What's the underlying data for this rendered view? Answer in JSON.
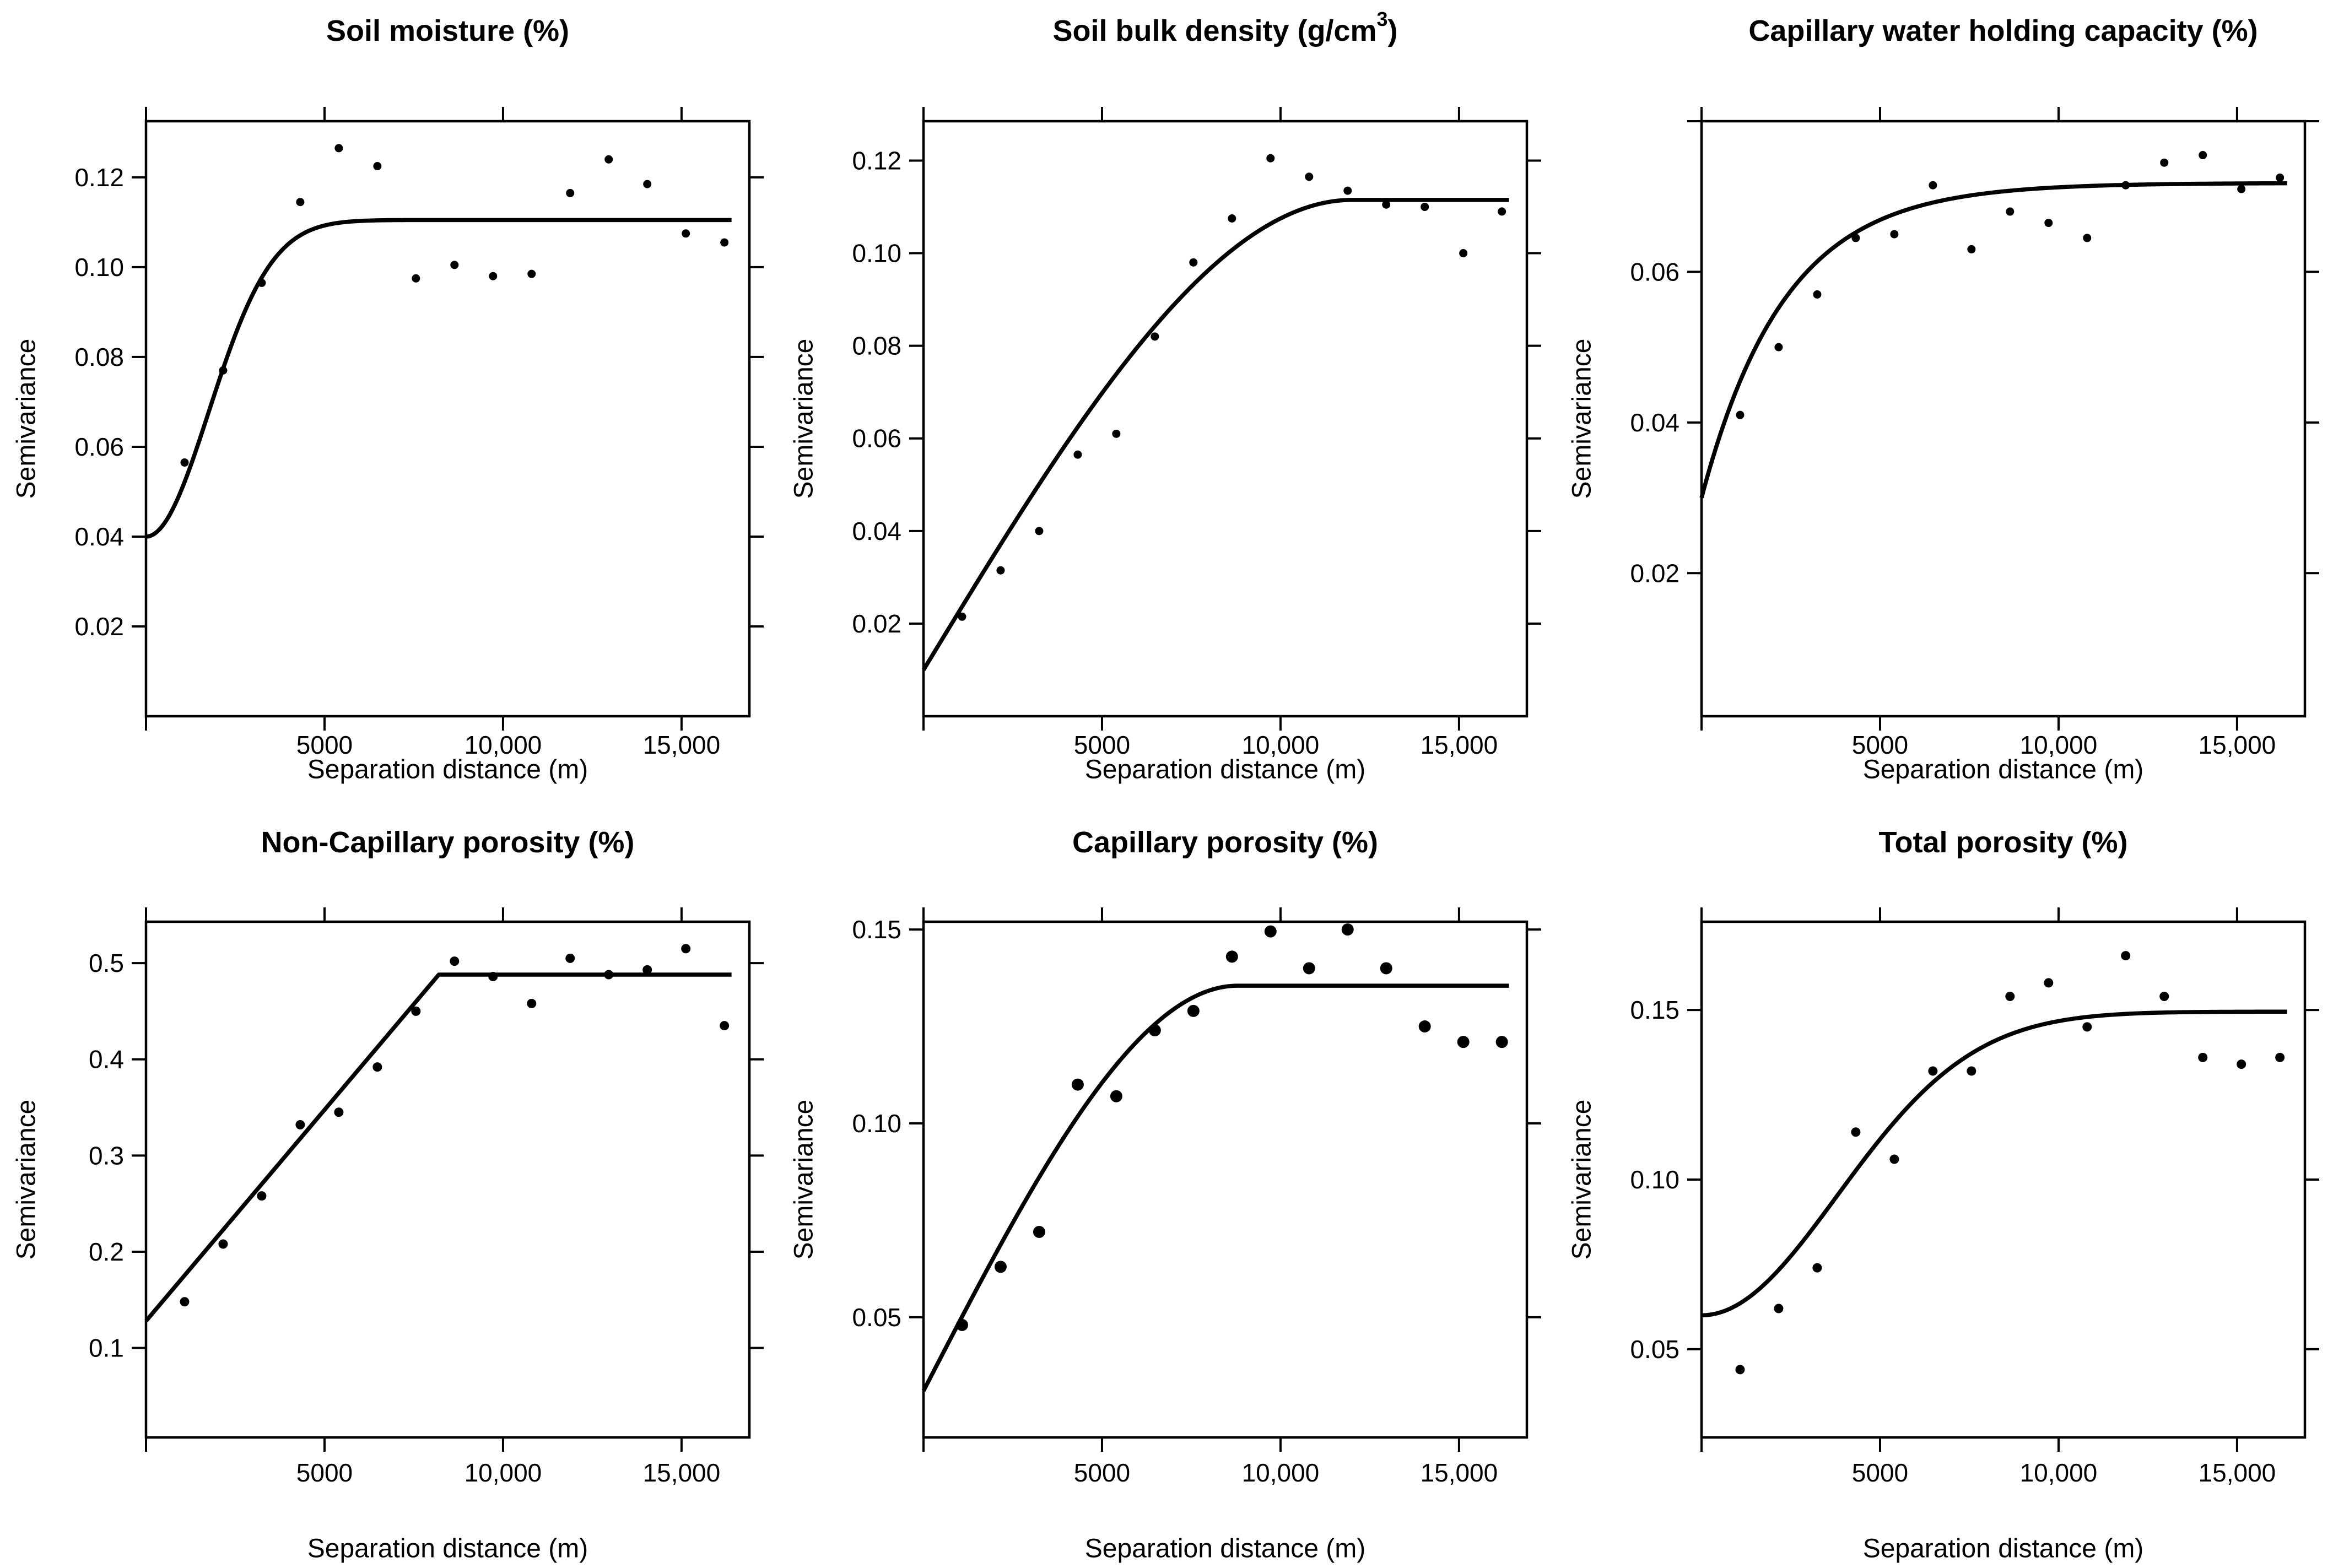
{
  "page": {
    "background": "#ffffff",
    "ink_color": "#000000"
  },
  "chart_data": [
    {
      "id": "soil-moisture",
      "type": "scatter",
      "title_parts": [
        {
          "text": "Soil moisture (%)"
        }
      ],
      "xlabel": "Separation distance (m)",
      "ylabel": "Semivariance",
      "xlim": [
        0,
        16900
      ],
      "ylim": [
        0,
        0.1325
      ],
      "grid": "off",
      "x_ticks": [
        {
          "value": 0,
          "label": ""
        },
        {
          "value": 5000,
          "label": "5000"
        },
        {
          "value": 10000,
          "label": "10,000"
        },
        {
          "value": 15000,
          "label": "15,000"
        }
      ],
      "y_ticks": [
        {
          "value": 0.02,
          "label": "0.02"
        },
        {
          "value": 0.04,
          "label": "0.04"
        },
        {
          "value": 0.06,
          "label": "0.06"
        },
        {
          "value": 0.08,
          "label": "0.08"
        },
        {
          "value": 0.1,
          "label": "0.10"
        },
        {
          "value": 0.12,
          "label": "0.12"
        }
      ],
      "points": [
        [
          1080,
          0.0565
        ],
        [
          2160,
          0.077
        ],
        [
          3240,
          0.0965
        ],
        [
          4320,
          0.1145
        ],
        [
          5400,
          0.1265
        ],
        [
          6480,
          0.1225
        ],
        [
          7560,
          0.0975
        ],
        [
          8640,
          0.1005
        ],
        [
          9720,
          0.098
        ],
        [
          10800,
          0.0985
        ],
        [
          11880,
          0.1165
        ],
        [
          12960,
          0.124
        ],
        [
          14040,
          0.1185
        ],
        [
          15120,
          0.1075
        ],
        [
          16200,
          0.1055
        ]
      ],
      "fit_curve": {
        "model": "gaussian",
        "nugget": 0.04,
        "sill": 0.1105,
        "range": 4300
      },
      "marker_radius": 7.5
    },
    {
      "id": "soil-bulk-density",
      "type": "scatter",
      "title_parts": [
        {
          "text": "Soil bulk density (g/cm"
        },
        {
          "text": "3",
          "sup": true
        },
        {
          "text": ")"
        }
      ],
      "xlabel": "Separation distance (m)",
      "ylabel": "Semivariance",
      "xlim": [
        0,
        16900
      ],
      "ylim": [
        0,
        0.1285
      ],
      "grid": "off",
      "x_ticks": [
        {
          "value": 0,
          "label": ""
        },
        {
          "value": 5000,
          "label": "5000"
        },
        {
          "value": 10000,
          "label": "10,000"
        },
        {
          "value": 15000,
          "label": "15,000"
        }
      ],
      "y_ticks": [
        {
          "value": 0.02,
          "label": "0.02"
        },
        {
          "value": 0.04,
          "label": "0.04"
        },
        {
          "value": 0.06,
          "label": "0.06"
        },
        {
          "value": 0.08,
          "label": "0.08"
        },
        {
          "value": 0.1,
          "label": "0.10"
        },
        {
          "value": 0.12,
          "label": "0.12"
        }
      ],
      "points": [
        [
          1080,
          0.0215
        ],
        [
          2160,
          0.0315
        ],
        [
          3240,
          0.04
        ],
        [
          4320,
          0.0565
        ],
        [
          5400,
          0.061
        ],
        [
          6480,
          0.082
        ],
        [
          7560,
          0.098
        ],
        [
          8640,
          0.1075
        ],
        [
          9720,
          0.1205
        ],
        [
          10800,
          0.1165
        ],
        [
          11880,
          0.1135
        ],
        [
          12960,
          0.1105
        ],
        [
          14040,
          0.11
        ],
        [
          15120,
          0.1
        ],
        [
          16200,
          0.109
        ]
      ],
      "fit_curve": {
        "model": "spherical",
        "nugget": 0.01,
        "sill": 0.1115,
        "range": 12000
      },
      "marker_radius": 7.5
    },
    {
      "id": "capillary-water-holding-capacity",
      "type": "scatter",
      "title_parts": [
        {
          "text": "Capillary water holding capacity (%)"
        }
      ],
      "xlabel": "Separation distance (m)",
      "ylabel": "Semivariance",
      "xlim": [
        0,
        16900
      ],
      "ylim": [
        0.001,
        0.08
      ],
      "grid": "off",
      "x_ticks": [
        {
          "value": 0,
          "label": ""
        },
        {
          "value": 5000,
          "label": "5000"
        },
        {
          "value": 10000,
          "label": "10,000"
        },
        {
          "value": 15000,
          "label": "15,000"
        }
      ],
      "y_ticks": [
        {
          "value": 0.02,
          "label": "0.02"
        },
        {
          "value": 0.04,
          "label": "0.04"
        },
        {
          "value": 0.06,
          "label": "0.06"
        },
        {
          "value": 0.08,
          "label": ""
        }
      ],
      "points": [
        [
          1080,
          0.041
        ],
        [
          2160,
          0.05
        ],
        [
          3240,
          0.057
        ],
        [
          4320,
          0.0645
        ],
        [
          5400,
          0.065
        ],
        [
          6480,
          0.0715
        ],
        [
          7560,
          0.063
        ],
        [
          8640,
          0.068
        ],
        [
          9720,
          0.0665
        ],
        [
          10800,
          0.0645
        ],
        [
          11880,
          0.0715
        ],
        [
          12960,
          0.0745
        ],
        [
          14040,
          0.0755
        ],
        [
          15120,
          0.071
        ],
        [
          16200,
          0.0725
        ]
      ],
      "fit_curve": {
        "model": "exponential",
        "nugget": 0.03,
        "sill": 0.0718,
        "range": 7000
      },
      "marker_radius": 7.5
    },
    {
      "id": "non-capillary-porosity",
      "type": "scatter",
      "title_parts": [
        {
          "text": "Non-Capillary porosity (%)"
        }
      ],
      "xlabel": "Separation distance (m)",
      "ylabel": "Semivariance",
      "xlim": [
        0,
        16900
      ],
      "ylim": [
        0.007,
        0.543
      ],
      "grid": "off",
      "x_ticks": [
        {
          "value": 0,
          "label": ""
        },
        {
          "value": 5000,
          "label": "5000"
        },
        {
          "value": 10000,
          "label": "10,000"
        },
        {
          "value": 15000,
          "label": "15,000"
        }
      ],
      "y_ticks": [
        {
          "value": 0.1,
          "label": "0.1"
        },
        {
          "value": 0.2,
          "label": "0.2"
        },
        {
          "value": 0.3,
          "label": "0.3"
        },
        {
          "value": 0.4,
          "label": "0.4"
        },
        {
          "value": 0.5,
          "label": "0.5"
        }
      ],
      "points": [
        [
          1080,
          0.148
        ],
        [
          2160,
          0.208
        ],
        [
          3240,
          0.258
        ],
        [
          4320,
          0.332
        ],
        [
          5400,
          0.345
        ],
        [
          6480,
          0.392
        ],
        [
          7560,
          0.45
        ],
        [
          8640,
          0.502
        ],
        [
          9720,
          0.486
        ],
        [
          10800,
          0.458
        ],
        [
          11880,
          0.505
        ],
        [
          12960,
          0.488
        ],
        [
          14040,
          0.493
        ],
        [
          15120,
          0.515
        ],
        [
          16200,
          0.435
        ]
      ],
      "fit_curve": {
        "model": "linear",
        "nugget": 0.128,
        "sill": 0.488,
        "range": 8200
      },
      "marker_radius": 8.5
    },
    {
      "id": "capillary-porosity",
      "type": "scatter",
      "title_parts": [
        {
          "text": "Capillary porosity (%)"
        }
      ],
      "xlabel": "Separation distance (m)",
      "ylabel": "Semivariance",
      "xlim": [
        0,
        16900
      ],
      "ylim": [
        0.019,
        0.152
      ],
      "grid": "off",
      "x_ticks": [
        {
          "value": 0,
          "label": ""
        },
        {
          "value": 5000,
          "label": "5000"
        },
        {
          "value": 10000,
          "label": "10,000"
        },
        {
          "value": 15000,
          "label": "15,000"
        }
      ],
      "y_ticks": [
        {
          "value": 0.05,
          "label": "0.05"
        },
        {
          "value": 0.1,
          "label": "0.10"
        },
        {
          "value": 0.15,
          "label": "0.15"
        }
      ],
      "points": [
        [
          1080,
          0.048
        ],
        [
          2160,
          0.063
        ],
        [
          3240,
          0.072
        ],
        [
          4320,
          0.11
        ],
        [
          5400,
          0.107
        ],
        [
          6480,
          0.124
        ],
        [
          7560,
          0.129
        ],
        [
          8640,
          0.143
        ],
        [
          9720,
          0.1495
        ],
        [
          10800,
          0.14
        ],
        [
          11880,
          0.15
        ],
        [
          12960,
          0.14
        ],
        [
          14040,
          0.125
        ],
        [
          15120,
          0.121
        ],
        [
          16200,
          0.121
        ]
      ],
      "fit_curve": {
        "model": "spherical",
        "nugget": 0.031,
        "sill": 0.1355,
        "range": 8800
      },
      "marker_radius": 11
    },
    {
      "id": "total-porosity",
      "type": "scatter",
      "title_parts": [
        {
          "text": "Total porosity (%)"
        }
      ],
      "xlabel": "Separation distance (m)",
      "ylabel": "Semivariance",
      "xlim": [
        0,
        16900
      ],
      "ylim": [
        0.024,
        0.176
      ],
      "grid": "off",
      "x_ticks": [
        {
          "value": 0,
          "label": ""
        },
        {
          "value": 5000,
          "label": "5000"
        },
        {
          "value": 10000,
          "label": "10,000"
        },
        {
          "value": 15000,
          "label": "15,000"
        }
      ],
      "y_ticks": [
        {
          "value": 0.05,
          "label": "0.05"
        },
        {
          "value": 0.1,
          "label": "0.10"
        },
        {
          "value": 0.15,
          "label": "0.15"
        }
      ],
      "points": [
        [
          1080,
          0.044
        ],
        [
          2160,
          0.062
        ],
        [
          3240,
          0.074
        ],
        [
          4320,
          0.114
        ],
        [
          5400,
          0.106
        ],
        [
          6480,
          0.132
        ],
        [
          7560,
          0.132
        ],
        [
          8640,
          0.154
        ],
        [
          9720,
          0.158
        ],
        [
          10800,
          0.145
        ],
        [
          11880,
          0.166
        ],
        [
          12960,
          0.154
        ],
        [
          14040,
          0.136
        ],
        [
          15120,
          0.134
        ],
        [
          16200,
          0.136
        ]
      ],
      "fit_curve": {
        "model": "gaussian",
        "nugget": 0.06,
        "sill": 0.1495,
        "range": 9300
      },
      "marker_radius": 8.5
    }
  ]
}
